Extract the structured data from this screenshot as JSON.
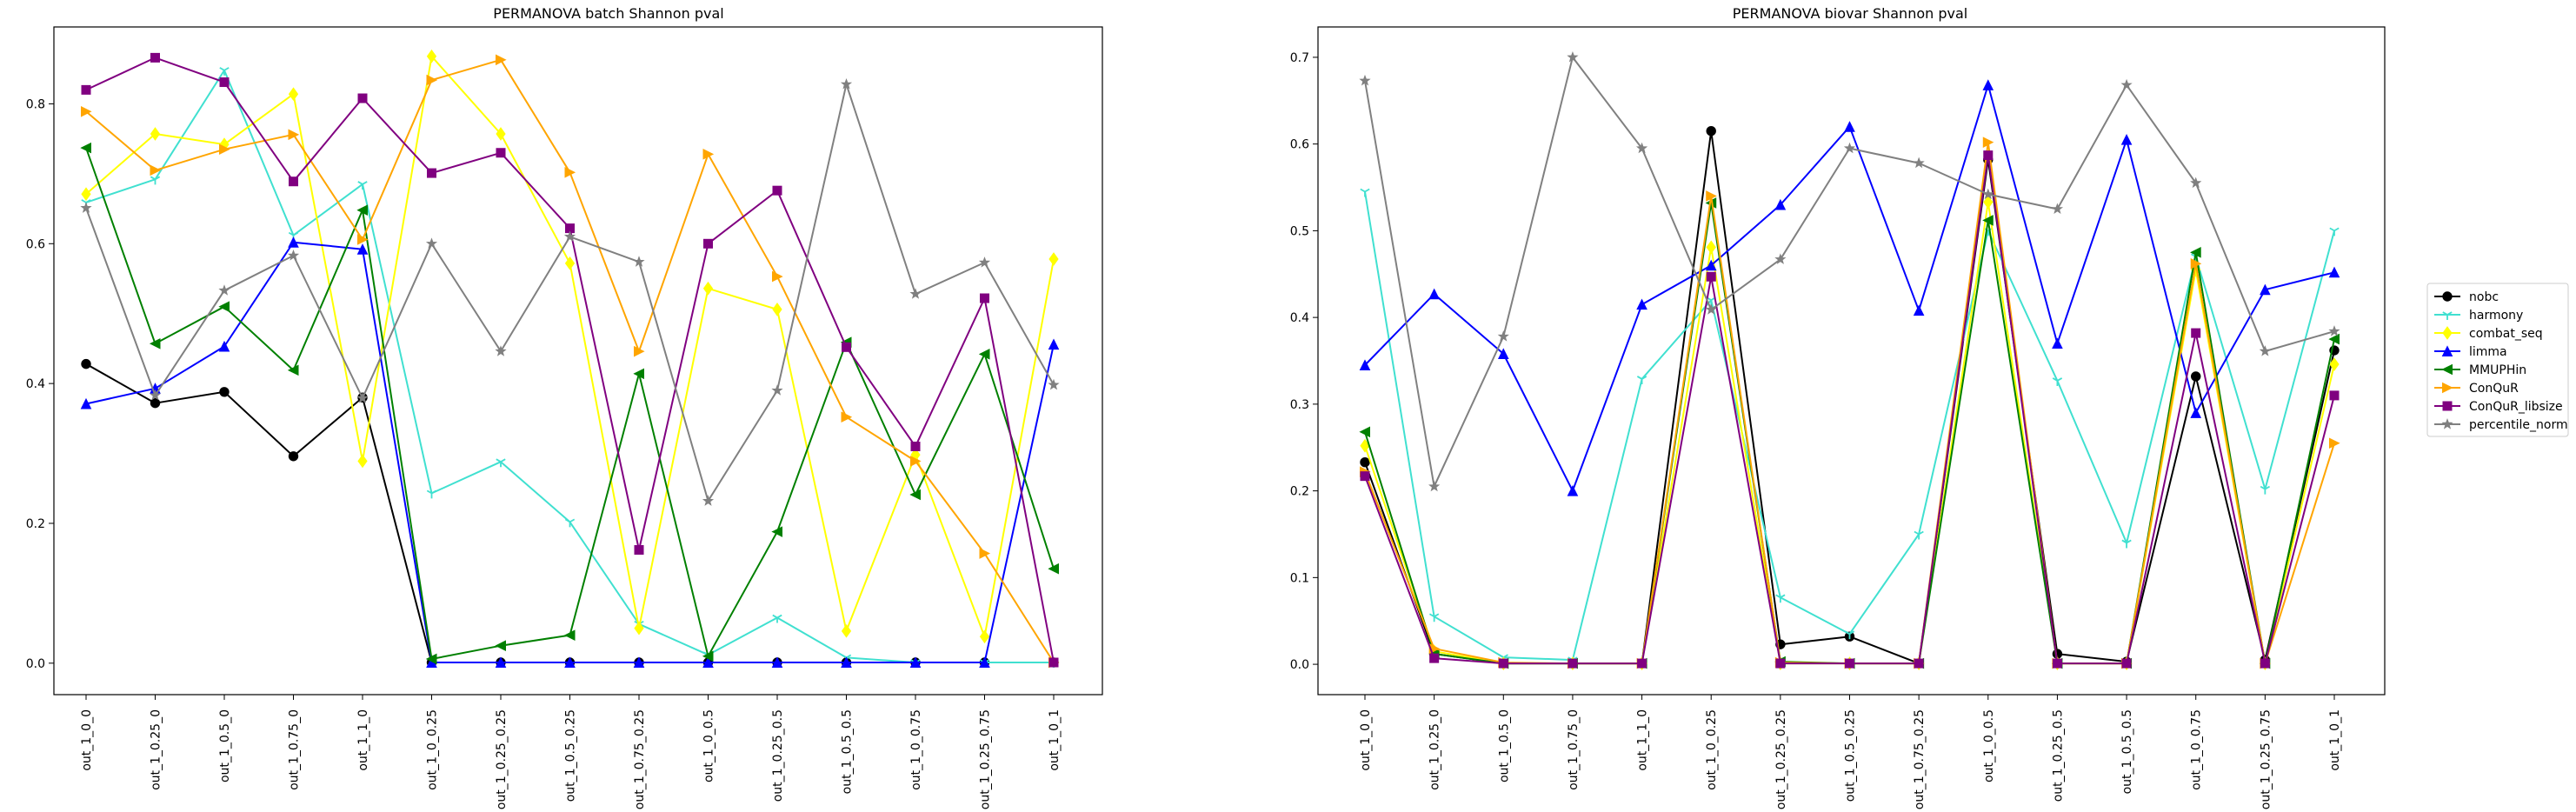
{
  "chart_data": [
    {
      "type": "line",
      "title": "PERMANOVA batch Shannon pval",
      "xlabel": "",
      "ylabel": "",
      "ylim": [
        -0.045,
        0.91
      ],
      "yticks": [
        0.0,
        0.2,
        0.4,
        0.6,
        0.8
      ],
      "ytick_labels": [
        "0.0",
        "0.2",
        "0.4",
        "0.6",
        "0.8"
      ],
      "grid": false,
      "categories": [
        "out_1_0_0",
        "out_1_0.25_0",
        "out_1_0.5_0",
        "out_1_0.75_0",
        "out_1_1_0",
        "out_1_0_0.25",
        "out_1_0.25_0.25",
        "out_1_0.5_0.25",
        "out_1_0.75_0.25",
        "out_1_0_0.5",
        "out_1_0.25_0.5",
        "out_1_0.5_0.5",
        "out_1_0_0.75",
        "out_1_0.25_0.75",
        "out_1_0_1"
      ],
      "series": [
        {
          "name": "nobc",
          "color": "#000000",
          "marker": "circle",
          "values": [
            0.428,
            0.372,
            0.388,
            0.296,
            0.38,
            0.001,
            0.001,
            0.001,
            0.001,
            0.001,
            0.001,
            0.001,
            0.001,
            0.001,
            0.001
          ]
        },
        {
          "name": "harmony",
          "color": "#40e0d0",
          "marker": "tri_down",
          "values": [
            0.659,
            0.692,
            0.848,
            0.612,
            0.685,
            0.243,
            0.288,
            0.202,
            0.056,
            0.012,
            0.065,
            0.008,
            0.001,
            0.001,
            0.001
          ]
        },
        {
          "name": "combat_seq",
          "color": "#ffff00",
          "marker": "diamond",
          "values": [
            0.671,
            0.757,
            0.742,
            0.814,
            0.289,
            0.868,
            0.757,
            0.572,
            0.05,
            0.536,
            0.506,
            0.046,
            0.298,
            0.038,
            0.578
          ]
        },
        {
          "name": "limma",
          "color": "#0000ff",
          "marker": "triangle_up",
          "values": [
            0.371,
            0.393,
            0.453,
            0.602,
            0.592,
            0.001,
            0.001,
            0.001,
            0.001,
            0.001,
            0.001,
            0.001,
            0.001,
            0.001,
            0.456
          ]
        },
        {
          "name": "MMUPHin",
          "color": "#008000",
          "marker": "triangle_left",
          "values": [
            0.737,
            0.457,
            0.51,
            0.419,
            0.648,
            0.006,
            0.025,
            0.04,
            0.414,
            0.01,
            0.188,
            0.459,
            0.241,
            0.442,
            0.135
          ]
        },
        {
          "name": "ConQuR",
          "color": "#ffa500",
          "marker": "triangle_right",
          "values": [
            0.789,
            0.705,
            0.735,
            0.756,
            0.606,
            0.834,
            0.863,
            0.702,
            0.446,
            0.728,
            0.553,
            0.352,
            0.289,
            0.157,
            0.001
          ]
        },
        {
          "name": "ConQuR_libsize",
          "color": "#800080",
          "marker": "square",
          "values": [
            0.82,
            0.866,
            0.831,
            0.689,
            0.808,
            0.701,
            0.73,
            0.622,
            0.162,
            0.6,
            0.676,
            0.452,
            0.31,
            0.522,
            0.001
          ]
        },
        {
          "name": "percentile_norm",
          "color": "#808080",
          "marker": "star",
          "values": [
            0.651,
            0.383,
            0.533,
            0.583,
            0.379,
            0.6,
            0.446,
            0.61,
            0.574,
            0.232,
            0.39,
            0.828,
            0.528,
            0.573,
            0.398
          ]
        }
      ]
    },
    {
      "type": "line",
      "title": "PERMANOVA biovar Shannon pval",
      "xlabel": "",
      "ylabel": "",
      "ylim": [
        -0.035,
        0.735
      ],
      "yticks": [
        0.0,
        0.1,
        0.2,
        0.3,
        0.4,
        0.5,
        0.6,
        0.7
      ],
      "ytick_labels": [
        "0.0",
        "0.1",
        "0.2",
        "0.3",
        "0.4",
        "0.5",
        "0.6",
        "0.7"
      ],
      "grid": false,
      "legend_position": "outside right, centered",
      "categories": [
        "out_1_0_0",
        "out_1_0.25_0",
        "out_1_0.5_0",
        "out_1_0.75_0",
        "out_1_1_0",
        "out_1_0_0.25",
        "out_1_0.25_0.25",
        "out_1_0.5_0.25",
        "out_1_0.75_0.25",
        "out_1_0_0.5",
        "out_1_0.25_0.5",
        "out_1_0.5_0.5",
        "out_1_0_0.75",
        "out_1_0.25_0.75",
        "out_1_0_1"
      ],
      "series": [
        {
          "name": "nobc",
          "color": "#000000",
          "marker": "circle",
          "values": [
            0.233,
            0.012,
            0.001,
            0.001,
            0.001,
            0.615,
            0.023,
            0.032,
            0.001,
            0.582,
            0.012,
            0.003,
            0.332,
            0.005,
            0.362
          ]
        },
        {
          "name": "harmony",
          "color": "#40e0d0",
          "marker": "tri_down",
          "values": [
            0.545,
            0.055,
            0.008,
            0.005,
            0.329,
            0.42,
            0.077,
            0.035,
            0.15,
            0.5,
            0.327,
            0.14,
            0.47,
            0.202,
            0.5
          ]
        },
        {
          "name": "combat_seq",
          "color": "#ffff00",
          "marker": "diamond",
          "values": [
            0.252,
            0.015,
            0.001,
            0.001,
            0.001,
            0.481,
            0.001,
            0.001,
            0.001,
            0.533,
            0.001,
            0.001,
            0.455,
            0.001,
            0.346
          ]
        },
        {
          "name": "limma",
          "color": "#0000ff",
          "marker": "triangle_up",
          "values": [
            0.345,
            0.427,
            0.358,
            0.2,
            0.415,
            0.46,
            0.53,
            0.62,
            0.408,
            0.668,
            0.37,
            0.605,
            0.29,
            0.432,
            0.452
          ]
        },
        {
          "name": "MMUPHin",
          "color": "#008000",
          "marker": "triangle_left",
          "values": [
            0.268,
            0.012,
            0.001,
            0.001,
            0.001,
            0.532,
            0.003,
            0.001,
            0.001,
            0.512,
            0.001,
            0.001,
            0.475,
            0.001,
            0.375
          ]
        },
        {
          "name": "ConQuR",
          "color": "#ffa500",
          "marker": "triangle_right",
          "values": [
            0.222,
            0.018,
            0.002,
            0.001,
            0.001,
            0.54,
            0.002,
            0.001,
            0.001,
            0.602,
            0.001,
            0.001,
            0.462,
            0.001,
            0.255
          ]
        },
        {
          "name": "ConQuR_libsize",
          "color": "#800080",
          "marker": "square",
          "values": [
            0.217,
            0.007,
            0.001,
            0.001,
            0.001,
            0.447,
            0.001,
            0.001,
            0.001,
            0.587,
            0.001,
            0.001,
            0.382,
            0.001,
            0.31
          ]
        },
        {
          "name": "percentile_norm",
          "color": "#808080",
          "marker": "star",
          "values": [
            0.673,
            0.205,
            0.378,
            0.7,
            0.595,
            0.409,
            0.467,
            0.595,
            0.578,
            0.542,
            0.525,
            0.668,
            0.555,
            0.361,
            0.384
          ]
        }
      ]
    }
  ]
}
